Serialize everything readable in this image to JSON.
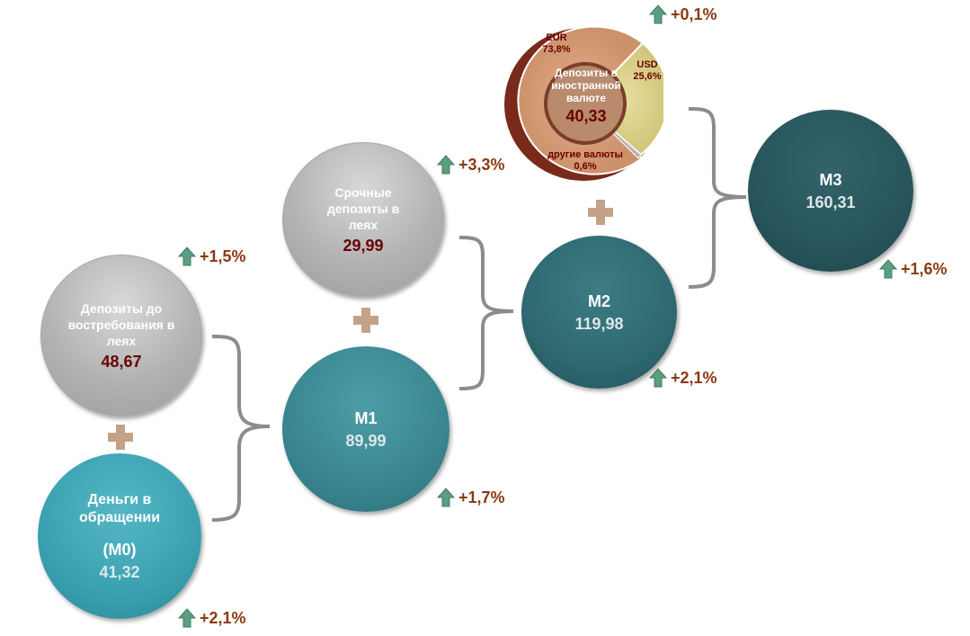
{
  "nodes": {
    "demand": {
      "label": "Депозиты до востребования в леях",
      "value": "48,67",
      "change": "+1,5%"
    },
    "cash": {
      "label": "Деньги в обращении",
      "sub": "(M0)",
      "value": "41,32",
      "change": "+2,1%"
    },
    "term": {
      "label": "Срочные депозиты в леях",
      "value": "29,99",
      "change": "+3,3%"
    },
    "m1": {
      "label": "M1",
      "value": "89,99",
      "change": "+1,7%"
    },
    "m2": {
      "label": "M2",
      "value": "119,98",
      "change": "+2,1%"
    },
    "fx": {
      "label": "Депозиты в иностранной валюте",
      "value": "40,33",
      "change": "+0,1%",
      "slices": [
        {
          "name": "EUR",
          "pct": "73,8%",
          "share": 73.8,
          "color": "#d7a07a"
        },
        {
          "name": "USD",
          "pct": "25,6%",
          "share": 25.6,
          "color": "#dcd48d"
        },
        {
          "name": "другие валюты",
          "pct": "0,6%",
          "share": 0.6,
          "color": "#b5b5b5"
        }
      ]
    },
    "m3": {
      "label": "M3",
      "value": "160,31",
      "change": "+1,6%"
    }
  },
  "colors": {
    "arrow": "#5d9d80",
    "change_text": "#8a3b12",
    "plus": "#c4a287",
    "brace": "#8c8c8c",
    "value_dark": "#6b0000"
  }
}
